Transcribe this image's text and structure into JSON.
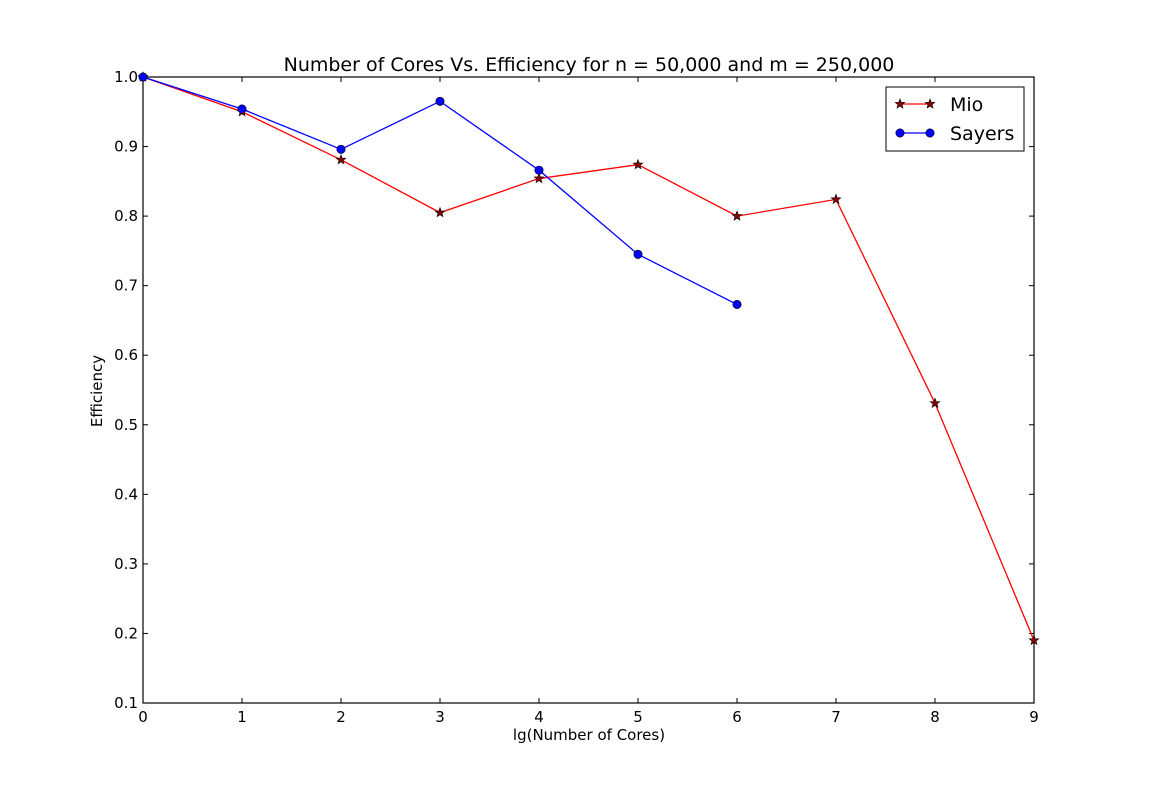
{
  "chart_data": {
    "type": "line",
    "title": "Number of Cores Vs. Efficiency for n = 50,000 and m = 250,000",
    "xlabel": "lg(Number of Cores)",
    "ylabel": "Efficiency",
    "xlim": [
      0,
      9
    ],
    "ylim": [
      0.1,
      1.0
    ],
    "xticks": [
      "0",
      "1",
      "2",
      "3",
      "4",
      "5",
      "6",
      "7",
      "8",
      "9"
    ],
    "yticks": [
      "0.1",
      "0.2",
      "0.3",
      "0.4",
      "0.5",
      "0.6",
      "0.7",
      "0.8",
      "0.9",
      "1.0"
    ],
    "grid": false,
    "legend_position": "top-right",
    "series": [
      {
        "name": "Mio",
        "color": "#ff0000",
        "marker_fill": "#8b0000",
        "marker": "star",
        "x": [
          0,
          1,
          2,
          3,
          4,
          5,
          6,
          7,
          8,
          9
        ],
        "y": [
          1.0,
          0.95,
          0.881,
          0.805,
          0.854,
          0.874,
          0.8,
          0.824,
          0.531,
          0.19
        ]
      },
      {
        "name": "Sayers",
        "color": "#0000ff",
        "marker_fill": "#0000ff",
        "marker": "circle",
        "x": [
          0,
          1,
          2,
          3,
          4,
          5,
          6
        ],
        "y": [
          1.0,
          0.954,
          0.896,
          0.965,
          0.866,
          0.745,
          0.673
        ]
      }
    ]
  }
}
